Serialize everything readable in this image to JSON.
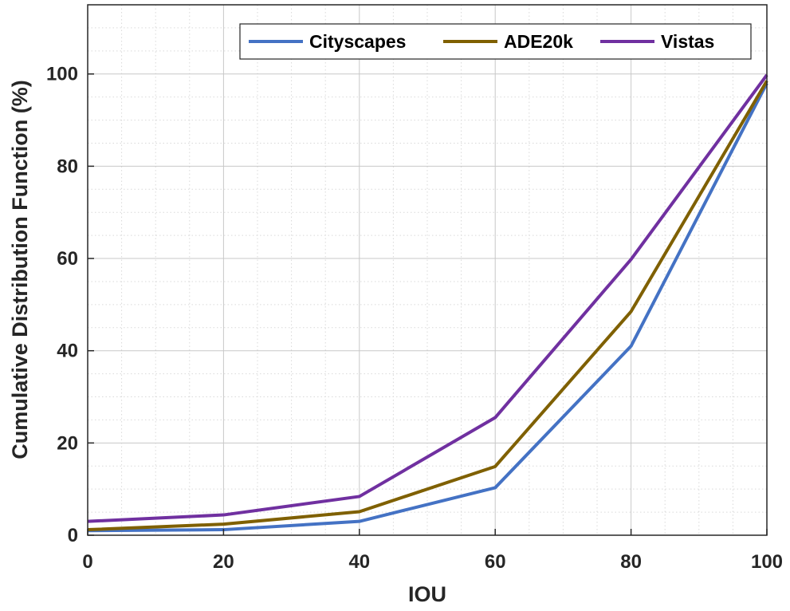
{
  "chart_data": {
    "type": "line",
    "xlabel": "IOU",
    "ylabel": "Cumulative Distribution Function (%)",
    "xlim": [
      0,
      100
    ],
    "ylim": [
      0,
      115
    ],
    "x_ticks": [
      0,
      20,
      40,
      60,
      80,
      100
    ],
    "y_ticks": [
      0,
      20,
      40,
      60,
      80,
      100
    ],
    "x_tick_labels": [
      "0",
      "20",
      "40",
      "60",
      "80",
      "100"
    ],
    "y_tick_labels": [
      "0",
      "20",
      "40",
      "60",
      "80",
      "100"
    ],
    "grid": true,
    "minor_grid": true,
    "legend_position": "top-right",
    "series": [
      {
        "name": "Cityscapes",
        "color": "#4472c4",
        "x": [
          0,
          20,
          40,
          60,
          80,
          100
        ],
        "y": [
          1.0,
          1.2,
          3.0,
          10.3,
          41.0,
          98.0
        ]
      },
      {
        "name": "ADE20k",
        "color": "#7f6000",
        "x": [
          0,
          20,
          40,
          60,
          80,
          100
        ],
        "y": [
          1.2,
          2.4,
          5.1,
          14.9,
          48.5,
          98.5
        ]
      },
      {
        "name": "Vistas",
        "color": "#7030a0",
        "x": [
          0,
          20,
          40,
          60,
          80,
          100
        ],
        "y": [
          3.0,
          4.4,
          8.4,
          25.5,
          59.8,
          99.8
        ]
      }
    ]
  }
}
